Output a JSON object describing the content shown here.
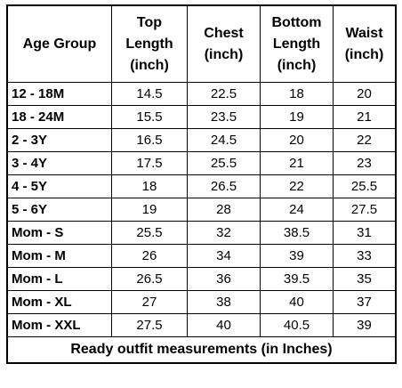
{
  "table": {
    "columns": [
      {
        "key": "age_group",
        "lines": [
          "Age Group"
        ]
      },
      {
        "key": "top_length",
        "lines": [
          "Top",
          "Length",
          "(inch)"
        ]
      },
      {
        "key": "chest",
        "lines": [
          "Chest",
          "(inch)"
        ]
      },
      {
        "key": "bottom_length",
        "lines": [
          "Bottom",
          "Length",
          "(inch)"
        ]
      },
      {
        "key": "waist",
        "lines": [
          "Waist",
          "(inch)"
        ]
      }
    ],
    "rows": [
      [
        "12 - 18M",
        "14.5",
        "22.5",
        "18",
        "20"
      ],
      [
        "18 - 24M",
        "15.5",
        "23.5",
        "19",
        "21"
      ],
      [
        "2 - 3Y",
        "16.5",
        "24.5",
        "20",
        "22"
      ],
      [
        "3 - 4Y",
        "17.5",
        "25.5",
        "21",
        "23"
      ],
      [
        "4 - 5Y",
        "18",
        "26.5",
        "22",
        "25.5"
      ],
      [
        "5 - 6Y",
        "19",
        "28",
        "24",
        "27.5"
      ],
      [
        "Mom - S",
        "25.5",
        "32",
        "38.5",
        "31"
      ],
      [
        "Mom - M",
        "26",
        "34",
        "39",
        "33"
      ],
      [
        "Mom - L",
        "26.5",
        "36",
        "39.5",
        "35"
      ],
      [
        "Mom - XL",
        "27",
        "38",
        "40",
        "37"
      ],
      [
        "Mom - XXL",
        "27.5",
        "40",
        "40.5",
        "39"
      ]
    ],
    "footer": "Ready outfit measurements (in Inches)"
  }
}
